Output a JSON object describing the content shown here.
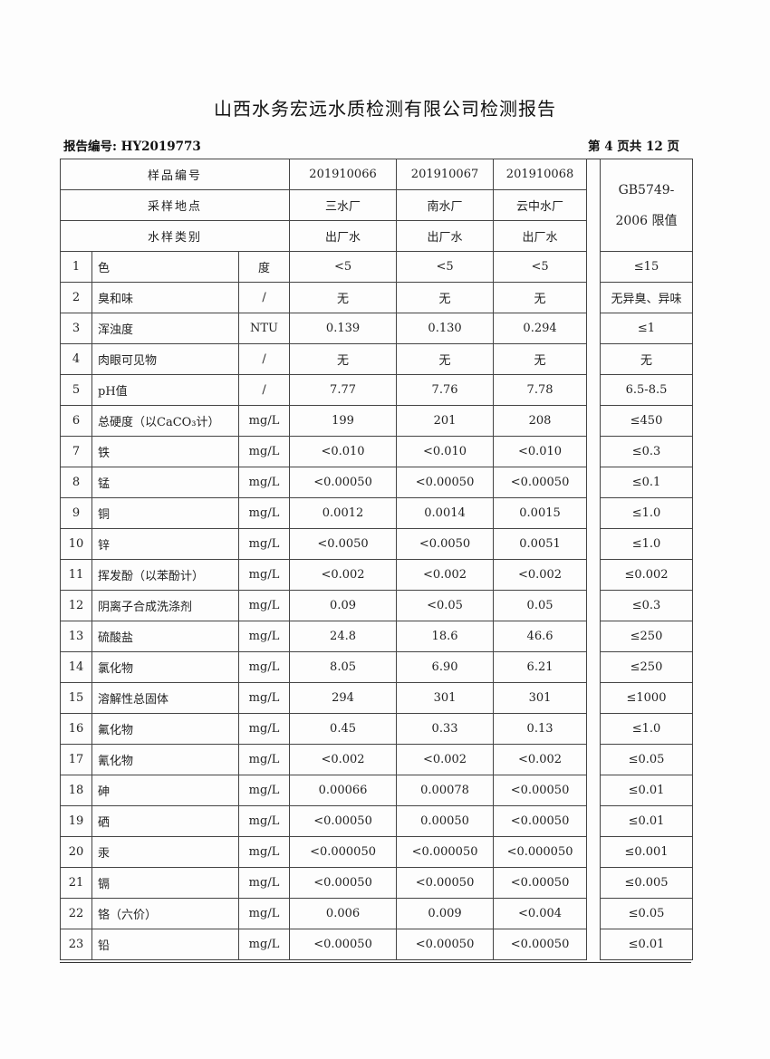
{
  "title": "山西水务宏远水质检测有限公司检测报告",
  "report_no": "报告编号: HY2019773",
  "page_info": "第 4 页共 12 页",
  "header": {
    "sample_no_label": "样品编号",
    "location_label": "采样地点",
    "type_label": "水样类别",
    "samples": [
      {
        "no": "201910066",
        "location": "三水厂",
        "type": "出厂水"
      },
      {
        "no": "201910067",
        "location": "南水厂",
        "type": "出厂水"
      },
      {
        "no": "201910068",
        "location": "云中水厂",
        "type": "出厂水"
      }
    ],
    "limit_label_1": "GB5749-",
    "limit_label_2": "2006 限值"
  },
  "rows": [
    {
      "n": "1",
      "item": "色",
      "unit": "度",
      "v": [
        "<5",
        "<5",
        "<5"
      ],
      "limit": "≤15"
    },
    {
      "n": "2",
      "item": "臭和味",
      "unit": "/",
      "v": [
        "无",
        "无",
        "无"
      ],
      "limit": "无异臭、异味"
    },
    {
      "n": "3",
      "item": "浑浊度",
      "unit": "NTU",
      "v": [
        "0.139",
        "0.130",
        "0.294"
      ],
      "limit": "≤1"
    },
    {
      "n": "4",
      "item": "肉眼可见物",
      "unit": "/",
      "v": [
        "无",
        "无",
        "无"
      ],
      "limit": "无"
    },
    {
      "n": "5",
      "item": "pH值",
      "unit": "/",
      "v": [
        "7.77",
        "7.76",
        "7.78"
      ],
      "limit": "6.5-8.5"
    },
    {
      "n": "6",
      "item": "总硬度（以CaCO₃计）",
      "unit": "mg/L",
      "v": [
        "199",
        "201",
        "208"
      ],
      "limit": "≤450"
    },
    {
      "n": "7",
      "item": "铁",
      "unit": "mg/L",
      "v": [
        "<0.010",
        "<0.010",
        "<0.010"
      ],
      "limit": "≤0.3"
    },
    {
      "n": "8",
      "item": "锰",
      "unit": "mg/L",
      "v": [
        "<0.00050",
        "<0.00050",
        "<0.00050"
      ],
      "limit": "≤0.1"
    },
    {
      "n": "9",
      "item": "铜",
      "unit": "mg/L",
      "v": [
        "0.0012",
        "0.0014",
        "0.0015"
      ],
      "limit": "≤1.0"
    },
    {
      "n": "10",
      "item": "锌",
      "unit": "mg/L",
      "v": [
        "<0.0050",
        "<0.0050",
        "0.0051"
      ],
      "limit": "≤1.0"
    },
    {
      "n": "11",
      "item": "挥发酚（以苯酚计）",
      "unit": "mg/L",
      "v": [
        "<0.002",
        "<0.002",
        "<0.002"
      ],
      "limit": "≤0.002"
    },
    {
      "n": "12",
      "item": "阴离子合成洗涤剂",
      "unit": "mg/L",
      "v": [
        "0.09",
        "<0.05",
        "0.05"
      ],
      "limit": "≤0.3"
    },
    {
      "n": "13",
      "item": "硫酸盐",
      "unit": "mg/L",
      "v": [
        "24.8",
        "18.6",
        "46.6"
      ],
      "limit": "≤250"
    },
    {
      "n": "14",
      "item": "氯化物",
      "unit": "mg/L",
      "v": [
        "8.05",
        "6.90",
        "6.21"
      ],
      "limit": "≤250"
    },
    {
      "n": "15",
      "item": "溶解性总固体",
      "unit": "mg/L",
      "v": [
        "294",
        "301",
        "301"
      ],
      "limit": "≤1000"
    },
    {
      "n": "16",
      "item": "氟化物",
      "unit": "mg/L",
      "v": [
        "0.45",
        "0.33",
        "0.13"
      ],
      "limit": "≤1.0"
    },
    {
      "n": "17",
      "item": "氰化物",
      "unit": "mg/L",
      "v": [
        "<0.002",
        "<0.002",
        "<0.002"
      ],
      "limit": "≤0.05"
    },
    {
      "n": "18",
      "item": "砷",
      "unit": "mg/L",
      "v": [
        "0.00066",
        "0.00078",
        "<0.00050"
      ],
      "limit": "≤0.01"
    },
    {
      "n": "19",
      "item": "硒",
      "unit": "mg/L",
      "v": [
        "<0.00050",
        "0.00050",
        "<0.00050"
      ],
      "limit": "≤0.01"
    },
    {
      "n": "20",
      "item": "汞",
      "unit": "mg/L",
      "v": [
        "<0.000050",
        "<0.000050",
        "<0.000050"
      ],
      "limit": "≤0.001"
    },
    {
      "n": "21",
      "item": "镉",
      "unit": "mg/L",
      "v": [
        "<0.00050",
        "<0.00050",
        "<0.00050"
      ],
      "limit": "≤0.005"
    },
    {
      "n": "22",
      "item": "铬（六价）",
      "unit": "mg/L",
      "v": [
        "0.006",
        "0.009",
        "<0.004"
      ],
      "limit": "≤0.05"
    },
    {
      "n": "23",
      "item": "铅",
      "unit": "mg/L",
      "v": [
        "<0.00050",
        "<0.00050",
        "<0.00050"
      ],
      "limit": "≤0.01"
    }
  ]
}
